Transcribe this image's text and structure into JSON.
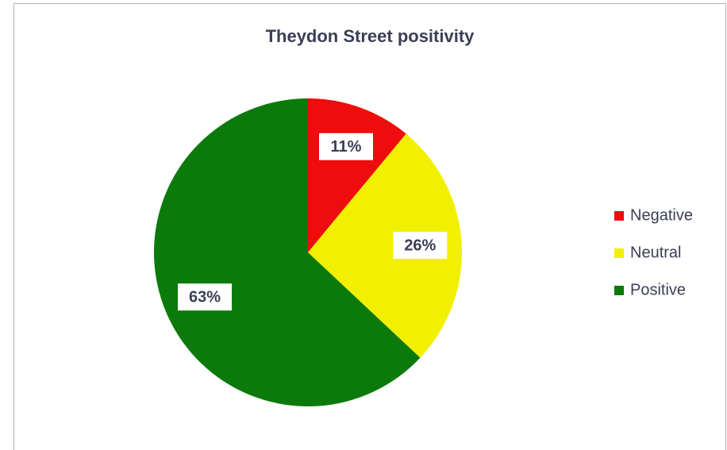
{
  "chart_data": {
    "type": "pie",
    "title": "Theydon Street positivity",
    "categories": [
      "Negative",
      "Neutral",
      "Positive"
    ],
    "values": [
      11,
      26,
      63
    ],
    "value_labels": [
      "11%",
      "26%",
      "63%"
    ],
    "colors": [
      "#ee0c0c",
      "#f0f000",
      "#0b7a0b"
    ],
    "legend": "right"
  }
}
